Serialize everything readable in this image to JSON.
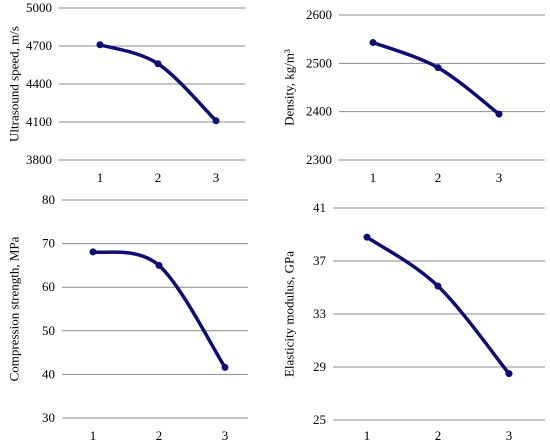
{
  "chart_data": [
    {
      "type": "line",
      "title": "",
      "xlabel": "",
      "ylabel": "Ultrasound speed, m/s",
      "categories": [
        "1",
        "2",
        "3"
      ],
      "yticks": [
        "3800",
        "4100",
        "4400",
        "4700",
        "5000"
      ],
      "ylim": [
        3800,
        5000
      ],
      "grid": true,
      "color": "#0d0d73",
      "series": [
        {
          "values": [
            4710,
            4560,
            4110
          ]
        }
      ]
    },
    {
      "type": "line",
      "title": "",
      "xlabel": "",
      "ylabel": "Density, kg/m³",
      "categories": [
        "1",
        "2",
        "3"
      ],
      "yticks": [
        "2300",
        "2400",
        "2500",
        "2600"
      ],
      "ylim": [
        2300,
        2600
      ],
      "grid": true,
      "color": "#0d0d73",
      "series": [
        {
          "values": [
            2543,
            2491,
            2395
          ]
        }
      ]
    },
    {
      "type": "line",
      "title": "",
      "xlabel": "",
      "ylabel": "Compression strength, MPa",
      "categories": [
        "1",
        "2",
        "3"
      ],
      "yticks": [
        "30",
        "40",
        "50",
        "60",
        "70",
        "80"
      ],
      "ylim": [
        30,
        80
      ],
      "grid": true,
      "color": "#0d0d73",
      "series": [
        {
          "values": [
            68.1,
            65,
            41.6
          ]
        }
      ]
    },
    {
      "type": "line",
      "title": "",
      "xlabel": "",
      "ylabel": "Elasticity modulus, GPa",
      "categories": [
        "1",
        "2",
        "3"
      ],
      "yticks": [
        "25",
        "29",
        "33",
        "37",
        "41"
      ],
      "ylim": [
        25,
        41
      ],
      "grid": true,
      "color": "#0d0d73",
      "series": [
        {
          "values": [
            38.8,
            35.1,
            28.5
          ]
        }
      ]
    }
  ]
}
